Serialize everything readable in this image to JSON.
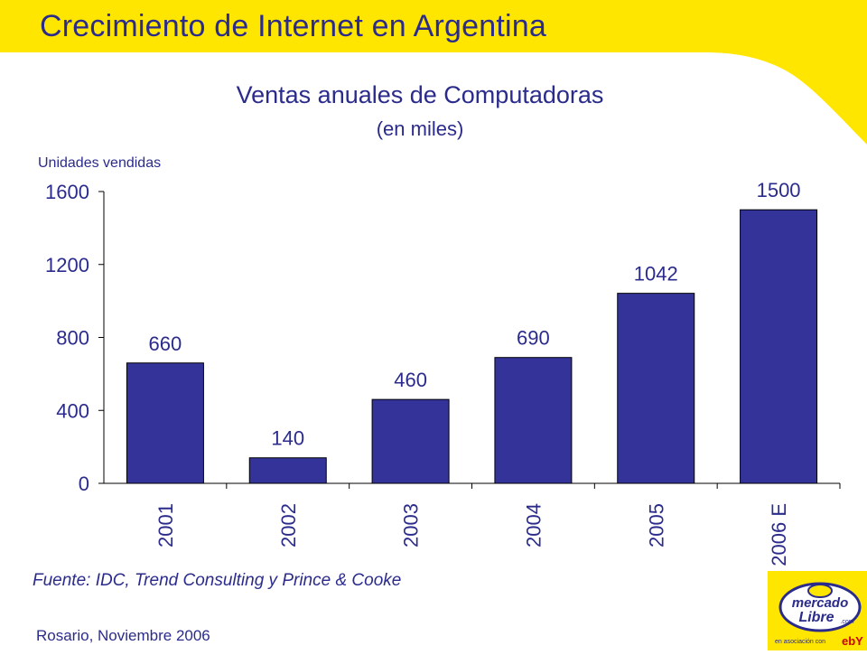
{
  "slide": {
    "title": "Crecimiento de Internet en Argentina",
    "source": "Fuente: IDC, Trend Consulting y Prince & Cooke",
    "footer": "Rosario, Noviembre 2006"
  },
  "logo": {
    "brand_line1": "mercado",
    "brand_line2": "Libre",
    "brand_suffix": ".com",
    "partner_text": "en asociación con",
    "partner_brand": "ebY"
  },
  "colors": {
    "accent": "#ffe600",
    "text": "#2b2b8c",
    "bar": "#333399"
  },
  "chart_data": {
    "type": "bar",
    "title": "Ventas anuales de Computadoras",
    "subtitle": "(en miles)",
    "ylabel": "Unidades vendidas",
    "categories": [
      "2001",
      "2002",
      "2003",
      "2004",
      "2005",
      "2006 E"
    ],
    "values": [
      660,
      140,
      460,
      690,
      1042,
      1500
    ],
    "ylim": [
      0,
      1600
    ],
    "yticks": [
      0,
      400,
      800,
      1200,
      1600
    ],
    "grid": false,
    "legend": "none"
  }
}
